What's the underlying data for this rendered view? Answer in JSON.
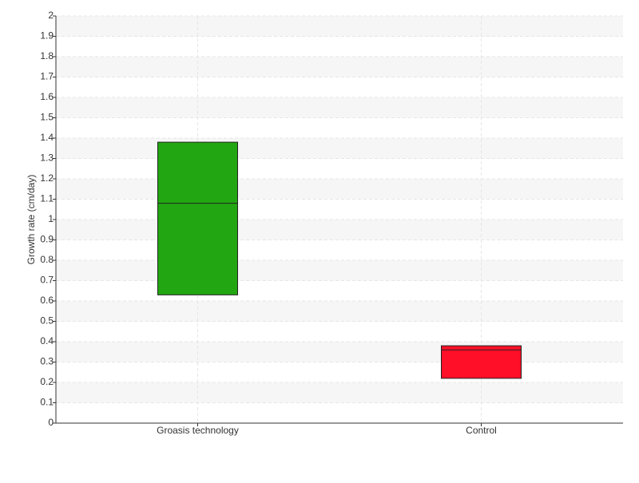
{
  "chart_data": {
    "type": "box",
    "y_label": "Growth rate (cm/day)",
    "categories": [
      "Groasis technology",
      "Control"
    ],
    "q1": [
      0.63,
      0.22
    ],
    "median": [
      1.08,
      0.36
    ],
    "q3": [
      1.38,
      0.38
    ],
    "colors": [
      "#22a611",
      "#ff0f28"
    ],
    "ylim": [
      0,
      2
    ],
    "yticks": [
      0,
      0.1,
      0.2,
      0.3,
      0.4,
      0.5,
      0.6,
      0.7,
      0.8,
      0.9,
      1,
      1.1,
      1.2,
      1.3,
      1.4,
      1.5,
      1.6,
      1.7,
      1.8,
      1.9,
      2
    ],
    "grid": true
  }
}
